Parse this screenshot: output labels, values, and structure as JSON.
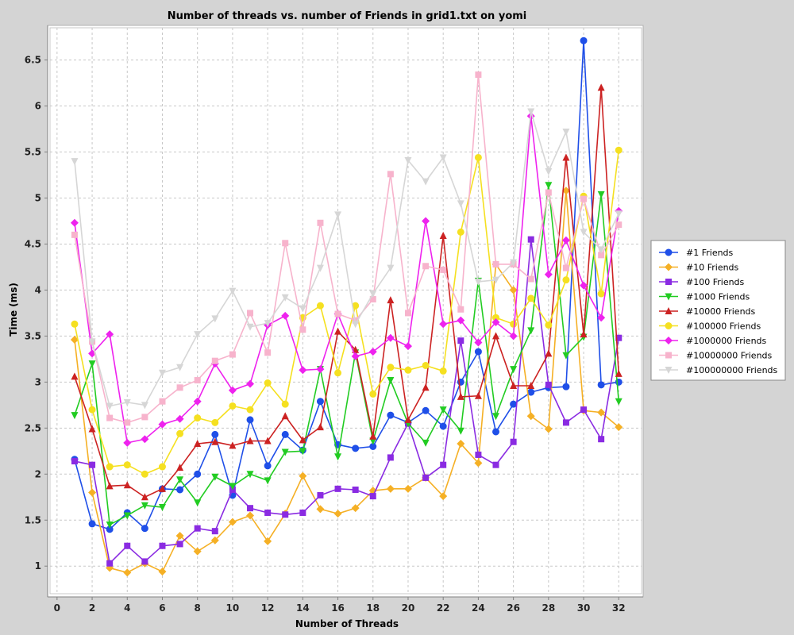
{
  "chart_data": {
    "type": "line",
    "title": "Number of threads vs. number of Friends in grid1.txt on yomi",
    "xlabel": "Number of Threads",
    "ylabel": "Time (ms)",
    "xlim": [
      -0.4,
      33.3
    ],
    "ylim": [
      0.7,
      6.85
    ],
    "xticks": [
      0,
      2,
      4,
      6,
      8,
      10,
      12,
      14,
      16,
      18,
      20,
      22,
      24,
      26,
      28,
      30,
      32
    ],
    "yticks": [
      1,
      1.5,
      2,
      2.5,
      3,
      3.5,
      4,
      4.5,
      5,
      5.5,
      6,
      6.5
    ],
    "ytick_labels": [
      "1",
      "1.5",
      "2",
      "2.5",
      "3",
      "3.5",
      "4",
      "4.5",
      "5",
      "5.5",
      "6",
      "6.5"
    ],
    "grid": true,
    "legend_position": "right",
    "x": [
      1,
      2,
      3,
      4,
      5,
      6,
      7,
      8,
      9,
      10,
      11,
      12,
      13,
      14,
      15,
      16,
      17,
      18,
      19,
      20,
      21,
      22,
      23,
      24,
      25,
      26,
      27,
      28,
      29,
      30,
      31,
      32
    ],
    "series": [
      {
        "name": "#1 Friends",
        "color": "#1f4fe8",
        "marker": "circle",
        "values": [
          2.16,
          1.46,
          1.4,
          1.58,
          1.41,
          1.84,
          1.83,
          2.0,
          2.43,
          1.77,
          2.59,
          2.09,
          2.43,
          2.26,
          2.79,
          2.32,
          2.28,
          2.3,
          2.64,
          2.56,
          2.69,
          2.52,
          3.0,
          3.33,
          2.46,
          2.76,
          2.89,
          2.94,
          2.95,
          6.71,
          2.97,
          3.0
        ]
      },
      {
        "name": "#10 Friends",
        "color": "#f5b025",
        "marker": "diamond",
        "values": [
          3.46,
          1.8,
          0.98,
          0.93,
          1.03,
          0.94,
          1.33,
          1.16,
          1.28,
          1.48,
          1.55,
          1.27,
          1.57,
          1.98,
          1.62,
          1.57,
          1.63,
          1.82,
          1.84,
          1.84,
          1.96,
          1.76,
          2.33,
          2.12,
          4.28,
          4.0,
          2.63,
          2.49,
          5.08,
          2.69,
          2.67,
          2.51
        ]
      },
      {
        "name": "#100 Friends",
        "color": "#8a2be2",
        "marker": "square",
        "values": [
          2.14,
          2.1,
          1.03,
          1.22,
          1.05,
          1.22,
          1.24,
          1.41,
          1.38,
          1.83,
          1.63,
          1.58,
          1.56,
          1.58,
          1.77,
          1.84,
          1.83,
          1.76,
          2.18,
          2.55,
          1.96,
          2.1,
          3.45,
          2.21,
          2.1,
          2.35,
          4.55,
          2.97,
          2.56,
          2.7,
          2.38,
          3.48
        ]
      },
      {
        "name": "#1000 Friends",
        "color": "#22cc22",
        "marker": "triangle-down",
        "values": [
          2.64,
          3.2,
          1.45,
          1.55,
          1.66,
          1.64,
          1.94,
          1.69,
          1.97,
          1.87,
          2.0,
          1.93,
          2.24,
          2.25,
          3.14,
          2.19,
          3.32,
          2.36,
          3.02,
          2.55,
          2.34,
          2.7,
          2.47,
          4.1,
          2.63,
          3.14,
          3.56,
          5.14,
          3.29,
          3.49,
          5.04,
          2.79
        ]
      },
      {
        "name": "#10000 Friends",
        "color": "#cc2222",
        "marker": "triangle-up",
        "values": [
          3.06,
          2.49,
          1.87,
          1.88,
          1.75,
          1.84,
          2.07,
          2.33,
          2.35,
          2.31,
          2.36,
          2.36,
          2.63,
          2.37,
          2.51,
          3.55,
          3.35,
          2.41,
          3.89,
          2.59,
          2.94,
          4.59,
          2.84,
          2.85,
          3.5,
          2.96,
          2.96,
          3.31,
          5.44,
          3.52,
          6.2,
          3.09
        ]
      },
      {
        "name": "#100000 Friends",
        "color": "#f5e020",
        "marker": "circle",
        "values": [
          3.63,
          2.7,
          2.08,
          2.1,
          2.0,
          2.08,
          2.44,
          2.61,
          2.56,
          2.74,
          2.7,
          2.99,
          2.76,
          3.7,
          3.83,
          3.1,
          3.83,
          2.87,
          3.16,
          3.13,
          3.18,
          3.12,
          4.63,
          5.44,
          3.7,
          3.63,
          3.91,
          3.62,
          4.11,
          5.02,
          3.96,
          5.52
        ]
      },
      {
        "name": "#1000000 Friends",
        "color": "#ee22ee",
        "marker": "diamond",
        "values": [
          4.73,
          3.31,
          3.52,
          2.34,
          2.38,
          2.54,
          2.6,
          2.79,
          3.2,
          2.91,
          2.98,
          3.62,
          3.72,
          3.13,
          3.14,
          3.74,
          3.28,
          3.33,
          3.48,
          3.39,
          4.75,
          3.63,
          3.67,
          3.43,
          3.65,
          3.5,
          5.89,
          4.17,
          4.54,
          4.05,
          3.7,
          4.86
        ]
      },
      {
        "name": "#10000000 Friends",
        "color": "#f7b3cc",
        "marker": "square",
        "values": [
          4.6,
          3.44,
          2.61,
          2.56,
          2.62,
          2.79,
          2.94,
          3.02,
          3.23,
          3.3,
          3.75,
          3.32,
          4.51,
          3.57,
          4.73,
          3.74,
          3.67,
          3.9,
          5.26,
          3.75,
          4.26,
          4.22,
          3.79,
          6.34,
          4.28,
          4.28,
          4.12,
          5.06,
          4.24,
          4.99,
          4.38,
          4.71
        ]
      },
      {
        "name": "#100000000 Friends",
        "color": "#d6d6d6",
        "marker": "triangle-down",
        "values": [
          5.4,
          3.44,
          2.74,
          2.78,
          2.75,
          3.1,
          3.16,
          3.52,
          3.69,
          3.99,
          3.6,
          3.64,
          3.92,
          3.8,
          4.24,
          4.82,
          3.63,
          3.96,
          4.24,
          5.41,
          5.18,
          5.44,
          4.94,
          4.09,
          4.11,
          4.3,
          5.94,
          5.29,
          5.72,
          4.63,
          4.44,
          4.83
        ]
      }
    ]
  }
}
